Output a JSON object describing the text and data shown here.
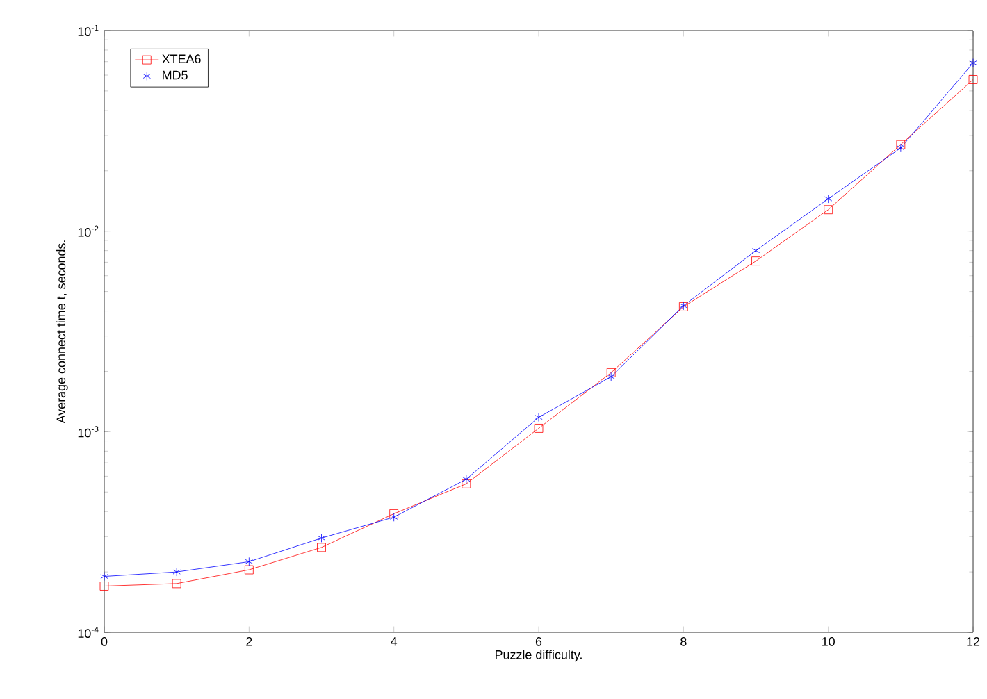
{
  "chart_data": {
    "type": "line",
    "xlabel": "Puzzle difficulty.",
    "ylabel": "Average connect time t, seconds.",
    "log": "y",
    "grid": false,
    "legend": "top left",
    "line_style": "solid",
    "x": [
      0,
      1,
      2,
      3,
      4,
      5,
      6,
      7,
      8,
      9,
      10,
      11,
      12
    ],
    "xlim": [
      0,
      12
    ],
    "xticks": [
      0,
      2,
      4,
      6,
      8,
      10,
      12
    ],
    "ylim": [
      0.0001,
      0.1
    ],
    "yticks": [
      {
        "value": 0.0001,
        "label": "10$^{-4}$"
      },
      {
        "value": 0.001,
        "label": "10$^{-3}$"
      },
      {
        "value": 0.01,
        "label": "10$^{-2}$"
      },
      {
        "value": 0.1,
        "label": "10$^{-1}$"
      }
    ],
    "series": [
      {
        "name": "XTEA6",
        "color": "#ff0000",
        "marker": "square",
        "values": [
          0.00017,
          0.000175,
          0.000205,
          0.000265,
          0.00039,
          0.00055,
          0.00104,
          0.00197,
          0.0042,
          0.0071,
          0.0128,
          0.027,
          0.057
        ]
      },
      {
        "name": "MD5",
        "color": "#0000ff",
        "marker": "cross",
        "values": [
          0.00019,
          0.0002,
          0.000225,
          0.000295,
          0.000375,
          0.00058,
          0.00118,
          0.00188,
          0.00425,
          0.008,
          0.0145,
          0.026,
          0.069
        ]
      }
    ]
  }
}
